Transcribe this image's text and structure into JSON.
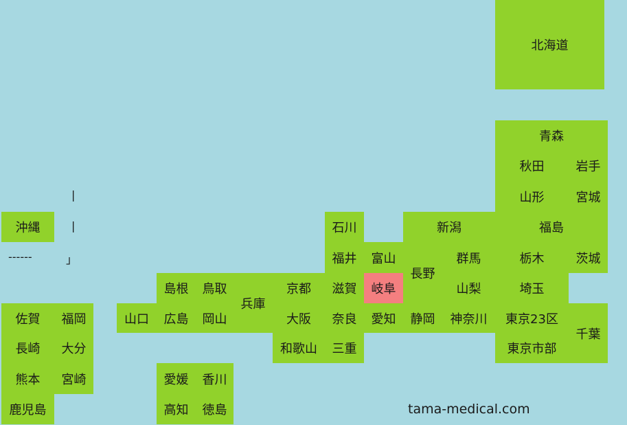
{
  "prefectures": [
    {
      "name": "北海道",
      "color": "#91d22b"
    },
    {
      "name": "青森",
      "color": "#91d22b"
    },
    {
      "name": "秋田",
      "color": "#91d22b"
    },
    {
      "name": "岩手",
      "color": "#91d22b"
    },
    {
      "name": "山形",
      "color": "#91d22b"
    },
    {
      "name": "宮城",
      "color": "#91d22b"
    },
    {
      "name": "沖縄",
      "color": "#91d22b"
    },
    {
      "name": "石川",
      "color": "#91d22b"
    },
    {
      "name": "新潟",
      "color": "#91d22b"
    },
    {
      "name": "福島",
      "color": "#91d22b"
    },
    {
      "name": "福井",
      "color": "#91d22b"
    },
    {
      "name": "富山",
      "color": "#91d22b"
    },
    {
      "name": "長野",
      "color": "#91d22b"
    },
    {
      "name": "群馬",
      "color": "#91d22b"
    },
    {
      "name": "栃木",
      "color": "#91d22b"
    },
    {
      "name": "茨城",
      "color": "#91d22b"
    },
    {
      "name": "島根",
      "color": "#91d22b"
    },
    {
      "name": "鳥取",
      "color": "#91d22b"
    },
    {
      "name": "兵庫",
      "color": "#91d22b"
    },
    {
      "name": "京都",
      "color": "#91d22b"
    },
    {
      "name": "滋賀",
      "color": "#91d22b"
    },
    {
      "name": "岐阜",
      "color": "#f47f80"
    },
    {
      "name": "山梨",
      "color": "#91d22b"
    },
    {
      "name": "埼玉",
      "color": "#91d22b"
    },
    {
      "name": "佐賀",
      "color": "#91d22b"
    },
    {
      "name": "福岡",
      "color": "#91d22b"
    },
    {
      "name": "山口",
      "color": "#91d22b"
    },
    {
      "name": "広島",
      "color": "#91d22b"
    },
    {
      "name": "岡山",
      "color": "#91d22b"
    },
    {
      "name": "大阪",
      "color": "#91d22b"
    },
    {
      "name": "奈良",
      "color": "#91d22b"
    },
    {
      "name": "愛知",
      "color": "#91d22b"
    },
    {
      "name": "静岡",
      "color": "#91d22b"
    },
    {
      "name": "神奈川",
      "color": "#91d22b"
    },
    {
      "name": "東京23区",
      "color": "#91d22b"
    },
    {
      "name": "千葉",
      "color": "#91d22b"
    },
    {
      "name": "長崎",
      "color": "#91d22b"
    },
    {
      "name": "大分",
      "color": "#91d22b"
    },
    {
      "name": "和歌山",
      "color": "#91d22b"
    },
    {
      "name": "三重",
      "color": "#91d22b"
    },
    {
      "name": "東京市部",
      "color": "#91d22b"
    },
    {
      "name": "熊本",
      "color": "#91d22b"
    },
    {
      "name": "宮崎",
      "color": "#91d22b"
    },
    {
      "name": "愛媛",
      "color": "#91d22b"
    },
    {
      "name": "香川",
      "color": "#91d22b"
    },
    {
      "name": "鹿児島",
      "color": "#91d22b"
    },
    {
      "name": "高知",
      "color": "#91d22b"
    },
    {
      "name": "徳島",
      "color": "#91d22b"
    }
  ],
  "separator_marks": [
    "|",
    "|",
    "------",
    "」"
  ],
  "footer": "tama-medical.com"
}
